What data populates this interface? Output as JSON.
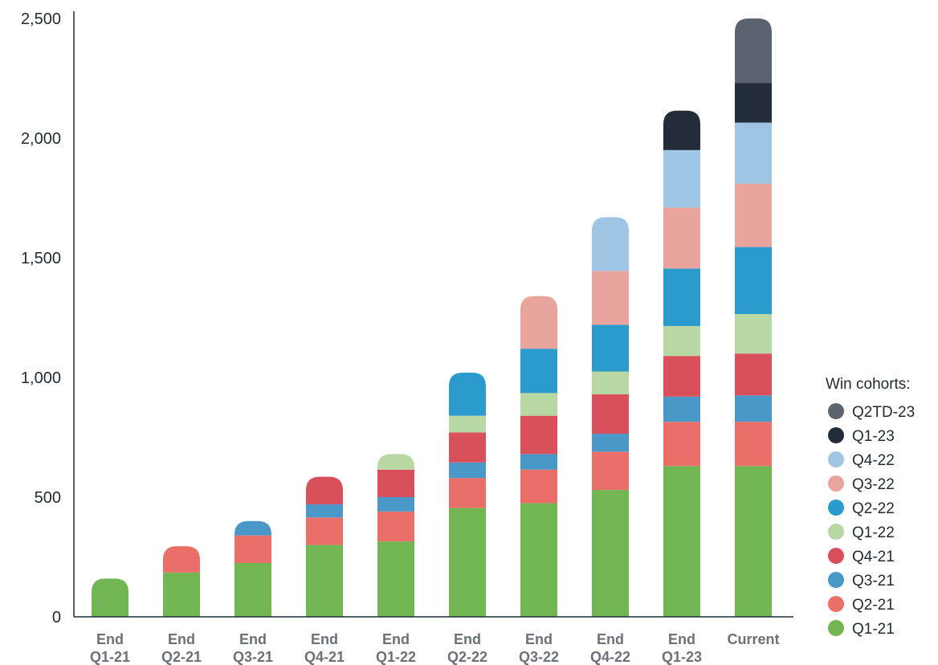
{
  "chart_data": {
    "type": "bar",
    "stacked": true,
    "categories": [
      [
        "End",
        "Q1-21"
      ],
      [
        "End",
        "Q2-21"
      ],
      [
        "End",
        "Q3-21"
      ],
      [
        "End",
        "Q4-21"
      ],
      [
        "End",
        "Q1-22"
      ],
      [
        "End",
        "Q2-22"
      ],
      [
        "End",
        "Q3-22"
      ],
      [
        "End",
        "Q4-22"
      ],
      [
        "End",
        "Q1-23"
      ],
      [
        "Current"
      ]
    ],
    "series": [
      {
        "name": "Q1-21",
        "color": "#72b653",
        "values": [
          160,
          185,
          225,
          300,
          315,
          455,
          475,
          530,
          630,
          630
        ]
      },
      {
        "name": "Q2-21",
        "color": "#ea6f68",
        "values": [
          0,
          110,
          115,
          115,
          125,
          125,
          140,
          160,
          185,
          185
        ]
      },
      {
        "name": "Q3-21",
        "color": "#4a98c8",
        "values": [
          0,
          0,
          60,
          55,
          60,
          65,
          65,
          75,
          105,
          110
        ]
      },
      {
        "name": "Q4-21",
        "color": "#d9505b",
        "values": [
          0,
          0,
          0,
          115,
          115,
          125,
          160,
          165,
          170,
          175
        ]
      },
      {
        "name": "Q1-22",
        "color": "#b7d7a3",
        "values": [
          0,
          0,
          0,
          0,
          65,
          70,
          95,
          95,
          125,
          165
        ]
      },
      {
        "name": "Q2-22",
        "color": "#2b9bcd",
        "values": [
          0,
          0,
          0,
          0,
          0,
          180,
          185,
          195,
          240,
          280
        ]
      },
      {
        "name": "Q3-22",
        "color": "#e9a49d",
        "values": [
          0,
          0,
          0,
          0,
          0,
          0,
          220,
          225,
          255,
          265
        ]
      },
      {
        "name": "Q4-22",
        "color": "#9fc5e4",
        "values": [
          0,
          0,
          0,
          0,
          0,
          0,
          0,
          225,
          240,
          255
        ]
      },
      {
        "name": "Q1-23",
        "color": "#222d39",
        "values": [
          0,
          0,
          0,
          0,
          0,
          0,
          0,
          0,
          165,
          165
        ]
      },
      {
        "name": "Q2TD-23",
        "color": "#5c6370",
        "values": [
          0,
          0,
          0,
          0,
          0,
          0,
          0,
          0,
          0,
          270
        ]
      }
    ],
    "ylim": [
      0,
      2500
    ],
    "yticks": [
      "0",
      "500",
      "1,000",
      "1,500",
      "2,000",
      "2,500"
    ],
    "ytick_values": [
      0,
      500,
      1000,
      1500,
      2000,
      2500
    ],
    "grid": false,
    "legend": {
      "title": "Win cohorts:",
      "placement": "right"
    },
    "xlabel": "",
    "ylabel": ""
  }
}
